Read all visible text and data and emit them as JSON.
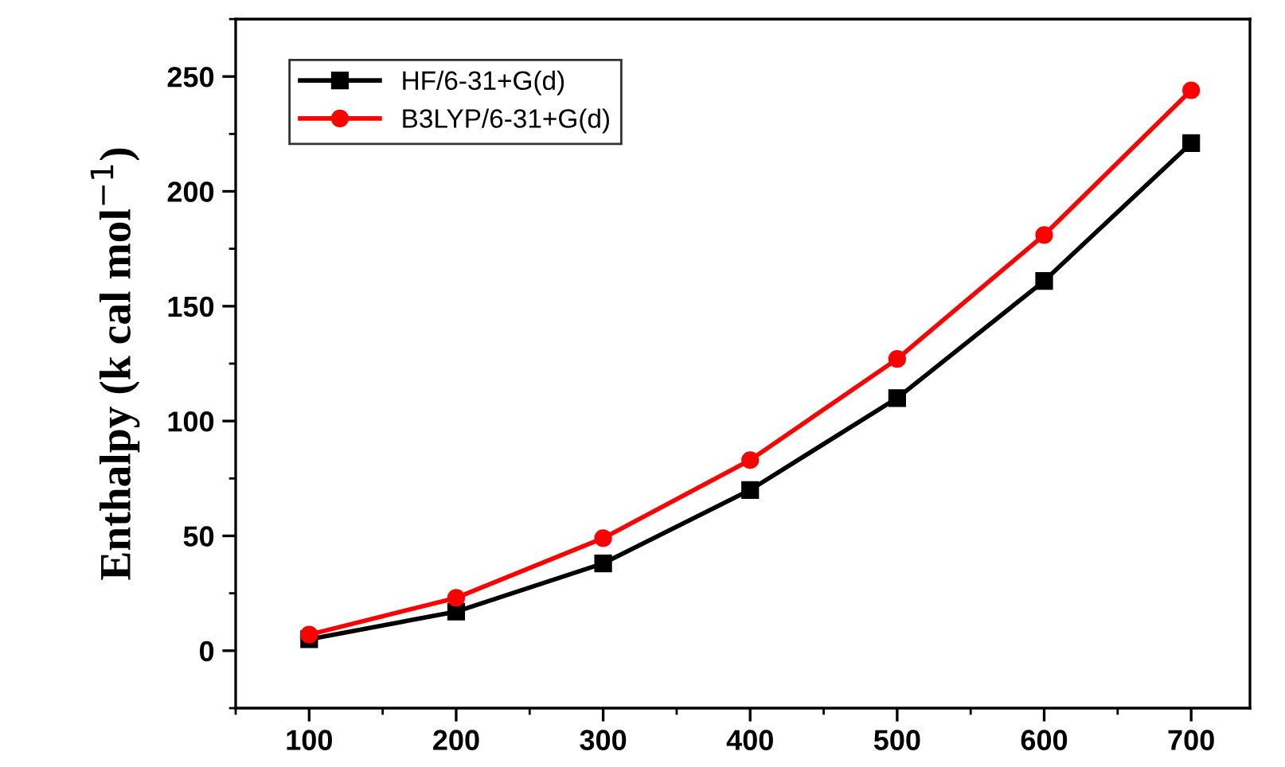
{
  "chart_data": {
    "type": "line",
    "ylabel": "Enthalpy (k cal mol$^{−1}$)",
    "x": [
      100,
      200,
      300,
      400,
      500,
      600,
      700
    ],
    "series": [
      {
        "name": "HF/6-31+G(d)",
        "color": "#000000",
        "marker": "square",
        "values": [
          5,
          17,
          38,
          70,
          110,
          161,
          221
        ]
      },
      {
        "name": "B3LYP/6-31+G(d)",
        "color": "#ff0000",
        "marker": "circle",
        "values": [
          7,
          23,
          49,
          83,
          127,
          181,
          244
        ]
      }
    ],
    "xlim": [
      50,
      740
    ],
    "xticks": [
      100,
      200,
      300,
      400,
      500,
      600,
      700
    ],
    "ylim": [
      -25,
      275
    ],
    "yticks": [
      0,
      50,
      100,
      150,
      200,
      250
    ],
    "grid": false,
    "legend": "top left",
    "line_style": "solid"
  }
}
